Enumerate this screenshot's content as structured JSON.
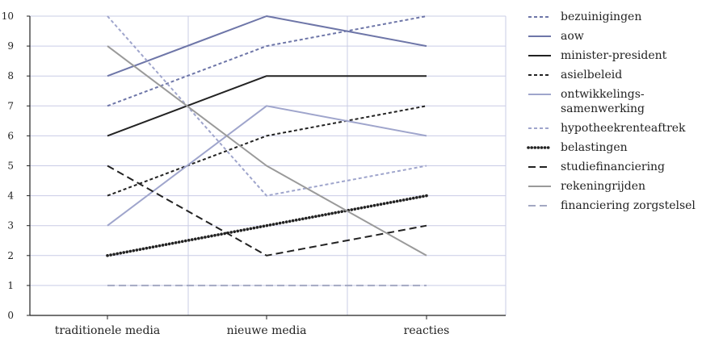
{
  "chart_data": {
    "type": "line",
    "categories": [
      "traditionele media",
      "nieuwe media",
      "reacties"
    ],
    "ylim": [
      0,
      10
    ],
    "yticks": [
      0,
      1,
      2,
      3,
      4,
      5,
      6,
      7,
      8,
      9,
      10
    ],
    "grid": true,
    "legend_position": "right",
    "series": [
      {
        "name": "bezuinigingen",
        "values": [
          7,
          9,
          10
        ],
        "color": "#6e76a8",
        "dash": "dashed"
      },
      {
        "name": "aow",
        "values": [
          8,
          10,
          9
        ],
        "color": "#6e76a8",
        "dash": "solid"
      },
      {
        "name": "minister-president",
        "values": [
          6,
          8,
          8
        ],
        "color": "#222222",
        "dash": "solid"
      },
      {
        "name": "asielbeleid",
        "values": [
          4,
          6,
          7
        ],
        "color": "#222222",
        "dash": "dashed"
      },
      {
        "name": "ontwikkelings-\nsamenwerking",
        "values": [
          3,
          7,
          6
        ],
        "color": "#9fa5cc",
        "dash": "solid"
      },
      {
        "name": "hypotheekrenteaftrek",
        "values": [
          10,
          4,
          5
        ],
        "color": "#9fa5cc",
        "dash": "dashed"
      },
      {
        "name": "belastingen",
        "values": [
          2,
          3,
          4
        ],
        "color": "#222222",
        "dash": "dotted"
      },
      {
        "name": "studiefinanciering",
        "values": [
          5,
          2,
          3
        ],
        "color": "#222222",
        "dash": "longdash"
      },
      {
        "name": "rekeningrijden",
        "values": [
          9,
          5,
          2
        ],
        "color": "#9a9a9a",
        "dash": "solid"
      },
      {
        "name": "financiering zorgstelsel",
        "values": [
          1,
          1,
          1
        ],
        "color": "#a3a8c2",
        "dash": "longdash"
      }
    ]
  }
}
